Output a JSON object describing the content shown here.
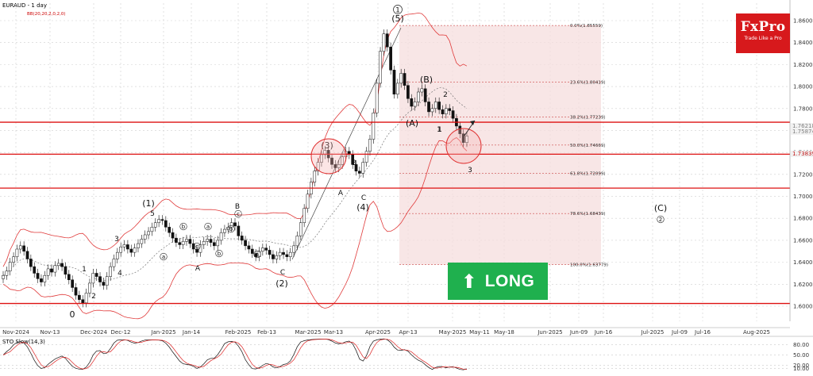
{
  "header": {
    "symbol_label": "EURAUD - 1 day",
    "indicator_label": "BB(20,20,2,0,2,0)"
  },
  "logo": {
    "brand": "FxPro",
    "tagline": "Trade Like a Pro",
    "color": "#d7191c"
  },
  "signal": {
    "label": "LONG",
    "icon": "up-arrow-icon",
    "color": "#1fb04e"
  },
  "chart_data": {
    "type": "candlestick",
    "y_axis": {
      "range": [
        1.6,
        1.87
      ],
      "ticks": [
        "1.86000",
        "1.84000",
        "1.82000",
        "1.80000",
        "1.78000",
        "1.76000",
        "1.74000",
        "1.72000",
        "1.70000",
        "1.68000",
        "1.66000",
        "1.64000",
        "1.62000",
        "1.60000"
      ]
    },
    "price_tags": [
      {
        "label": "1.76218",
        "value": 1.76218,
        "color": "#808080"
      },
      {
        "label": "1.75874",
        "value": 1.75874,
        "color": "#808080"
      },
      {
        "label": "1.73839",
        "value": 1.73839,
        "color": "#c01818"
      }
    ],
    "x_ticks": [
      "Nov-2024",
      "Nov-13",
      "Dec-2024",
      "Dec-12",
      "Jan-2025",
      "Jan-14",
      "Feb-2025",
      "Feb-13",
      "Mar-2025",
      "Mar-13",
      "Apr-2025",
      "Apr-13",
      "May-2025",
      "May-11",
      "May-18",
      "Jun-2025",
      "Jun-09",
      "Jun-16",
      "Jul-2025",
      "Jul-09",
      "Jul-16",
      "Aug-2025"
    ],
    "horizontal_levels": [
      1.7675,
      1.7384,
      1.7075,
      1.6025
    ],
    "fibonacci": {
      "high": 1.8556,
      "low": 1.6378,
      "levels": [
        {
          "label": "0.0%(1.85559)",
          "value": 1.85559
        },
        {
          "label": "23.6%(1.80419)",
          "value": 1.80419
        },
        {
          "label": "38.2%(1.77239)",
          "value": 1.77239
        },
        {
          "label": "50.0%(1.74669)",
          "value": 1.74669
        },
        {
          "label": "61.8%(1.72099)",
          "value": 1.72099
        },
        {
          "label": "78.6%(1.68439)",
          "value": 1.68439
        },
        {
          "label": "100.0%(1.63779)",
          "value": 1.63779
        }
      ]
    },
    "wave_labels": [
      "(1)",
      "5",
      "3",
      "1",
      "2",
      "4",
      "0",
      "a",
      "b",
      "c",
      "a",
      "b",
      "A",
      "b",
      "c",
      "a",
      "B",
      "C",
      "(2)",
      "(3)",
      "A",
      "B",
      "C",
      "(4)",
      "(5)",
      "1",
      "(A)",
      "(B)",
      "1",
      "2",
      "3",
      "(C)",
      "2"
    ],
    "oscillator": {
      "label": "STO Slow(14,3)",
      "levels": [
        "80.00",
        "50.00",
        "20.00",
        "10.00"
      ],
      "range": [
        0,
        100
      ]
    },
    "close_series": [
      1.628,
      1.632,
      1.64,
      1.645,
      1.652,
      1.655,
      1.65,
      1.643,
      1.636,
      1.63,
      1.625,
      1.622,
      1.628,
      1.634,
      1.631,
      1.637,
      1.639,
      1.636,
      1.629,
      1.624,
      1.617,
      1.61,
      1.606,
      1.603,
      1.612,
      1.621,
      1.63,
      1.627,
      1.622,
      1.619,
      1.627,
      1.636,
      1.643,
      1.649,
      1.654,
      1.656,
      1.652,
      1.649,
      1.653,
      1.657,
      1.661,
      1.665,
      1.668,
      1.672,
      1.676,
      1.679,
      1.678,
      1.672,
      1.667,
      1.662,
      1.658,
      1.656,
      1.659,
      1.661,
      1.657,
      1.652,
      1.649,
      1.656,
      1.659,
      1.661,
      1.658,
      1.655,
      1.66,
      1.667,
      1.67,
      1.672,
      1.676,
      1.673,
      1.664,
      1.66,
      1.655,
      1.652,
      1.648,
      1.645,
      1.65,
      1.653,
      1.651,
      1.647,
      1.643,
      1.646,
      1.649,
      1.647,
      1.645,
      1.649,
      1.655,
      1.664,
      1.676,
      1.689,
      1.702,
      1.713,
      1.723,
      1.731,
      1.738,
      1.742,
      1.735,
      1.729,
      1.726,
      1.729,
      1.736,
      1.741,
      1.738,
      1.729,
      1.723,
      1.721,
      1.731,
      1.741,
      1.752,
      1.776,
      1.803,
      1.832,
      1.848,
      1.836,
      1.815,
      1.793,
      1.803,
      1.812,
      1.801,
      1.789,
      1.782,
      1.786,
      1.795,
      1.798,
      1.786,
      1.777,
      1.78,
      1.786,
      1.779,
      1.775,
      1.78,
      1.778,
      1.771,
      1.764,
      1.757,
      1.749,
      1.755
    ]
  }
}
